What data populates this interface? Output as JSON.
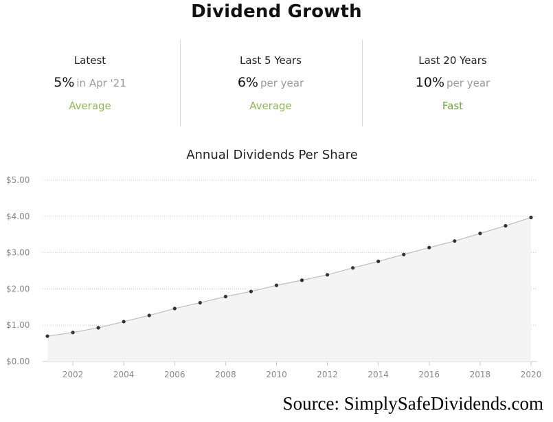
{
  "page": {
    "title": "Dividend Growth",
    "source": "Source: SimplySafeDividends.com"
  },
  "stats": [
    {
      "label": "Latest",
      "value": "5%",
      "sub": "in Apr '21",
      "rating": "Average",
      "rating_color": "#8fb851"
    },
    {
      "label": "Last 5 Years",
      "value": "6%",
      "sub": "per year",
      "rating": "Average",
      "rating_color": "#8fb851"
    },
    {
      "label": "Last 20 Years",
      "value": "10%",
      "sub": "per year",
      "rating": "Fast",
      "rating_color": "#6aa834"
    }
  ],
  "chart_data": {
    "type": "area",
    "title": "Annual Dividends Per Share",
    "xlabel": "",
    "ylabel": "",
    "x": [
      2001,
      2002,
      2003,
      2004,
      2005,
      2006,
      2007,
      2008,
      2009,
      2010,
      2011,
      2012,
      2013,
      2014,
      2015,
      2016,
      2017,
      2018,
      2019,
      2020
    ],
    "series": [
      {
        "values": [
          0.7,
          0.8,
          0.93,
          1.1,
          1.27,
          1.46,
          1.62,
          1.79,
          1.93,
          2.1,
          2.24,
          2.39,
          2.58,
          2.76,
          2.95,
          3.14,
          3.32,
          3.53,
          3.74,
          3.97
        ]
      }
    ],
    "xlim": [
      2001,
      2020
    ],
    "ylim": [
      0,
      5
    ],
    "yticks": [
      0,
      1,
      2,
      3,
      4,
      5
    ],
    "ytick_labels": [
      "$0.00",
      "$1.00",
      "$2.00",
      "$3.00",
      "$4.00",
      "$5.00"
    ],
    "xticks": [
      2002,
      2004,
      2006,
      2008,
      2010,
      2012,
      2014,
      2016,
      2018,
      2020
    ],
    "xtick_labels": [
      "2002",
      "2004",
      "2006",
      "2008",
      "2010",
      "2012",
      "2014",
      "2016",
      "2018",
      "2020"
    ],
    "grid": true,
    "legend": "none",
    "colors": {
      "line": "#bdbdbd",
      "fill": "#f4f4f4",
      "point": "#333333",
      "grid": "#c8c8c8"
    }
  }
}
